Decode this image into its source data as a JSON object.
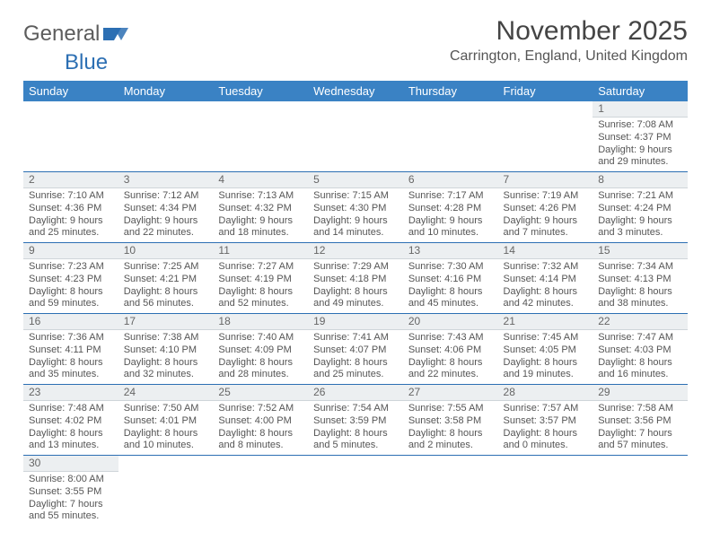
{
  "logo": {
    "text1": "General",
    "text2": "Blue",
    "flag_color": "#2c6fb3"
  },
  "header": {
    "title": "November 2025",
    "subtitle": "Carrington, England, United Kingdom"
  },
  "colors": {
    "header_bg": "#3a82c4",
    "header_text": "#ffffff",
    "row_border": "#2c6fb3",
    "daynum_bg": "#eceff1",
    "daynum_border": "#cfd5d9",
    "body_text": "#555555"
  },
  "weekdays": [
    "Sunday",
    "Monday",
    "Tuesday",
    "Wednesday",
    "Thursday",
    "Friday",
    "Saturday"
  ],
  "weeks": [
    [
      null,
      null,
      null,
      null,
      null,
      null,
      {
        "n": "1",
        "sunrise": "7:08 AM",
        "sunset": "4:37 PM",
        "day_h": "9",
        "day_m": "29"
      }
    ],
    [
      {
        "n": "2",
        "sunrise": "7:10 AM",
        "sunset": "4:36 PM",
        "day_h": "9",
        "day_m": "25"
      },
      {
        "n": "3",
        "sunrise": "7:12 AM",
        "sunset": "4:34 PM",
        "day_h": "9",
        "day_m": "22"
      },
      {
        "n": "4",
        "sunrise": "7:13 AM",
        "sunset": "4:32 PM",
        "day_h": "9",
        "day_m": "18"
      },
      {
        "n": "5",
        "sunrise": "7:15 AM",
        "sunset": "4:30 PM",
        "day_h": "9",
        "day_m": "14"
      },
      {
        "n": "6",
        "sunrise": "7:17 AM",
        "sunset": "4:28 PM",
        "day_h": "9",
        "day_m": "10"
      },
      {
        "n": "7",
        "sunrise": "7:19 AM",
        "sunset": "4:26 PM",
        "day_h": "9",
        "day_m": "7"
      },
      {
        "n": "8",
        "sunrise": "7:21 AM",
        "sunset": "4:24 PM",
        "day_h": "9",
        "day_m": "3"
      }
    ],
    [
      {
        "n": "9",
        "sunrise": "7:23 AM",
        "sunset": "4:23 PM",
        "day_h": "8",
        "day_m": "59"
      },
      {
        "n": "10",
        "sunrise": "7:25 AM",
        "sunset": "4:21 PM",
        "day_h": "8",
        "day_m": "56"
      },
      {
        "n": "11",
        "sunrise": "7:27 AM",
        "sunset": "4:19 PM",
        "day_h": "8",
        "day_m": "52"
      },
      {
        "n": "12",
        "sunrise": "7:29 AM",
        "sunset": "4:18 PM",
        "day_h": "8",
        "day_m": "49"
      },
      {
        "n": "13",
        "sunrise": "7:30 AM",
        "sunset": "4:16 PM",
        "day_h": "8",
        "day_m": "45"
      },
      {
        "n": "14",
        "sunrise": "7:32 AM",
        "sunset": "4:14 PM",
        "day_h": "8",
        "day_m": "42"
      },
      {
        "n": "15",
        "sunrise": "7:34 AM",
        "sunset": "4:13 PM",
        "day_h": "8",
        "day_m": "38"
      }
    ],
    [
      {
        "n": "16",
        "sunrise": "7:36 AM",
        "sunset": "4:11 PM",
        "day_h": "8",
        "day_m": "35"
      },
      {
        "n": "17",
        "sunrise": "7:38 AM",
        "sunset": "4:10 PM",
        "day_h": "8",
        "day_m": "32"
      },
      {
        "n": "18",
        "sunrise": "7:40 AM",
        "sunset": "4:09 PM",
        "day_h": "8",
        "day_m": "28"
      },
      {
        "n": "19",
        "sunrise": "7:41 AM",
        "sunset": "4:07 PM",
        "day_h": "8",
        "day_m": "25"
      },
      {
        "n": "20",
        "sunrise": "7:43 AM",
        "sunset": "4:06 PM",
        "day_h": "8",
        "day_m": "22"
      },
      {
        "n": "21",
        "sunrise": "7:45 AM",
        "sunset": "4:05 PM",
        "day_h": "8",
        "day_m": "19"
      },
      {
        "n": "22",
        "sunrise": "7:47 AM",
        "sunset": "4:03 PM",
        "day_h": "8",
        "day_m": "16"
      }
    ],
    [
      {
        "n": "23",
        "sunrise": "7:48 AM",
        "sunset": "4:02 PM",
        "day_h": "8",
        "day_m": "13"
      },
      {
        "n": "24",
        "sunrise": "7:50 AM",
        "sunset": "4:01 PM",
        "day_h": "8",
        "day_m": "10"
      },
      {
        "n": "25",
        "sunrise": "7:52 AM",
        "sunset": "4:00 PM",
        "day_h": "8",
        "day_m": "8"
      },
      {
        "n": "26",
        "sunrise": "7:54 AM",
        "sunset": "3:59 PM",
        "day_h": "8",
        "day_m": "5"
      },
      {
        "n": "27",
        "sunrise": "7:55 AM",
        "sunset": "3:58 PM",
        "day_h": "8",
        "day_m": "2"
      },
      {
        "n": "28",
        "sunrise": "7:57 AM",
        "sunset": "3:57 PM",
        "day_h": "8",
        "day_m": "0"
      },
      {
        "n": "29",
        "sunrise": "7:58 AM",
        "sunset": "3:56 PM",
        "day_h": "7",
        "day_m": "57"
      }
    ],
    [
      {
        "n": "30",
        "sunrise": "8:00 AM",
        "sunset": "3:55 PM",
        "day_h": "7",
        "day_m": "55"
      },
      null,
      null,
      null,
      null,
      null,
      null
    ]
  ],
  "labels": {
    "sunrise": "Sunrise:",
    "sunset": "Sunset:",
    "daylight_prefix": "Daylight:",
    "hours_word": "hours",
    "and_word": "and",
    "minutes_word": "minutes."
  }
}
